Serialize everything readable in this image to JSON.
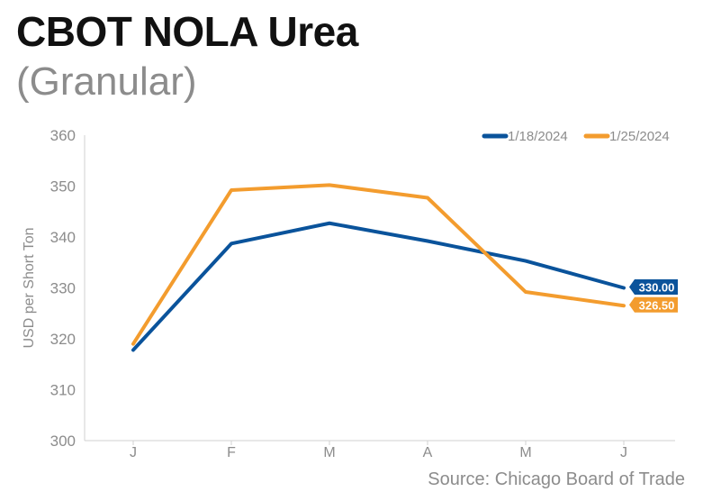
{
  "chart_data": {
    "type": "line",
    "title": "CBOT NOLA Urea",
    "subtitle": "(Granular)",
    "ylabel": "USD per Short Ton",
    "xlabel": "",
    "categories": [
      "J",
      "F",
      "M",
      "A",
      "M",
      "J"
    ],
    "ylim": [
      300,
      360
    ],
    "yticks": [
      300,
      310,
      320,
      330,
      340,
      350,
      360
    ],
    "grid": false,
    "legend_position": "top-right",
    "series": [
      {
        "name": "1/18/2024",
        "color": "#0a539b",
        "values": [
          317.8,
          338.7,
          342.7,
          339.2,
          335.3,
          330.0
        ],
        "end_label": "330.00"
      },
      {
        "name": "1/25/2024",
        "color": "#f39c2e",
        "values": [
          319.0,
          349.2,
          350.2,
          347.7,
          329.2,
          326.5
        ],
        "end_label": "326.50"
      }
    ],
    "source": "Source: Chicago Board of Trade"
  }
}
